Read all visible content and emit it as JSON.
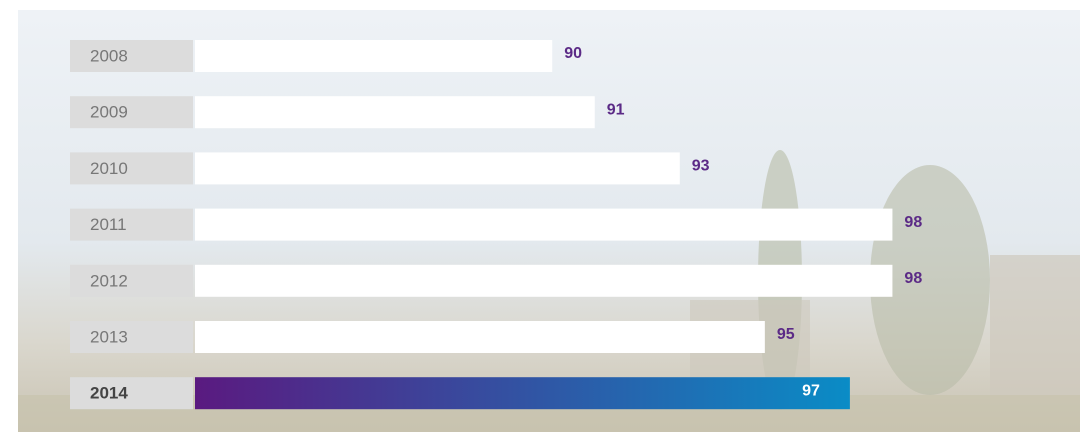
{
  "chart_data": {
    "type": "bar",
    "orientation": "horizontal",
    "categories": [
      "2008",
      "2009",
      "2010",
      "2011",
      "2012",
      "2013",
      "2014"
    ],
    "values": [
      90,
      91,
      93,
      98,
      98,
      95,
      97
    ],
    "color": "#ffffff",
    "label_color": "#5b2a86",
    "highlight": 6,
    "highlight_colors": [
      "#5a1a80",
      "#0a8cc6"
    ],
    "xlim": [
      81.6,
      101
    ]
  }
}
